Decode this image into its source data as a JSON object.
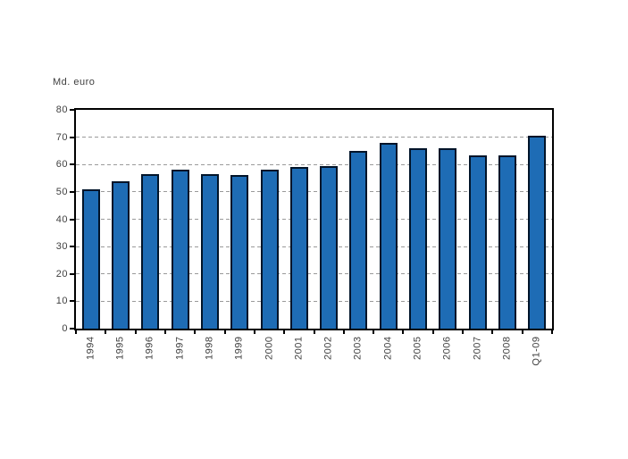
{
  "chart_data": {
    "type": "bar",
    "title": "",
    "ylabel": "Md. euro",
    "xlabel": "",
    "categories": [
      "1994",
      "1995",
      "1996",
      "1997",
      "1998",
      "1999",
      "2000",
      "2001",
      "2002",
      "2003",
      "2004",
      "2005",
      "2006",
      "2007",
      "2008",
      "Q1-09"
    ],
    "values": [
      51,
      54,
      56.5,
      58,
      56.5,
      56,
      58,
      59,
      59.5,
      65,
      68,
      66,
      66,
      63.5,
      63.5,
      70.5
    ],
    "ylim": [
      0,
      80
    ],
    "yticks": [
      0,
      10,
      20,
      30,
      40,
      50,
      60,
      70,
      80
    ],
    "grid": "horizontal-dashed",
    "legend": "none",
    "bar_color": "#1e6cb5",
    "bar_border_color": "#001429",
    "gridline_color": "#9a9a9a",
    "axis_color": "#000000",
    "text_color": "#404040",
    "background_color": "#ffffff"
  }
}
